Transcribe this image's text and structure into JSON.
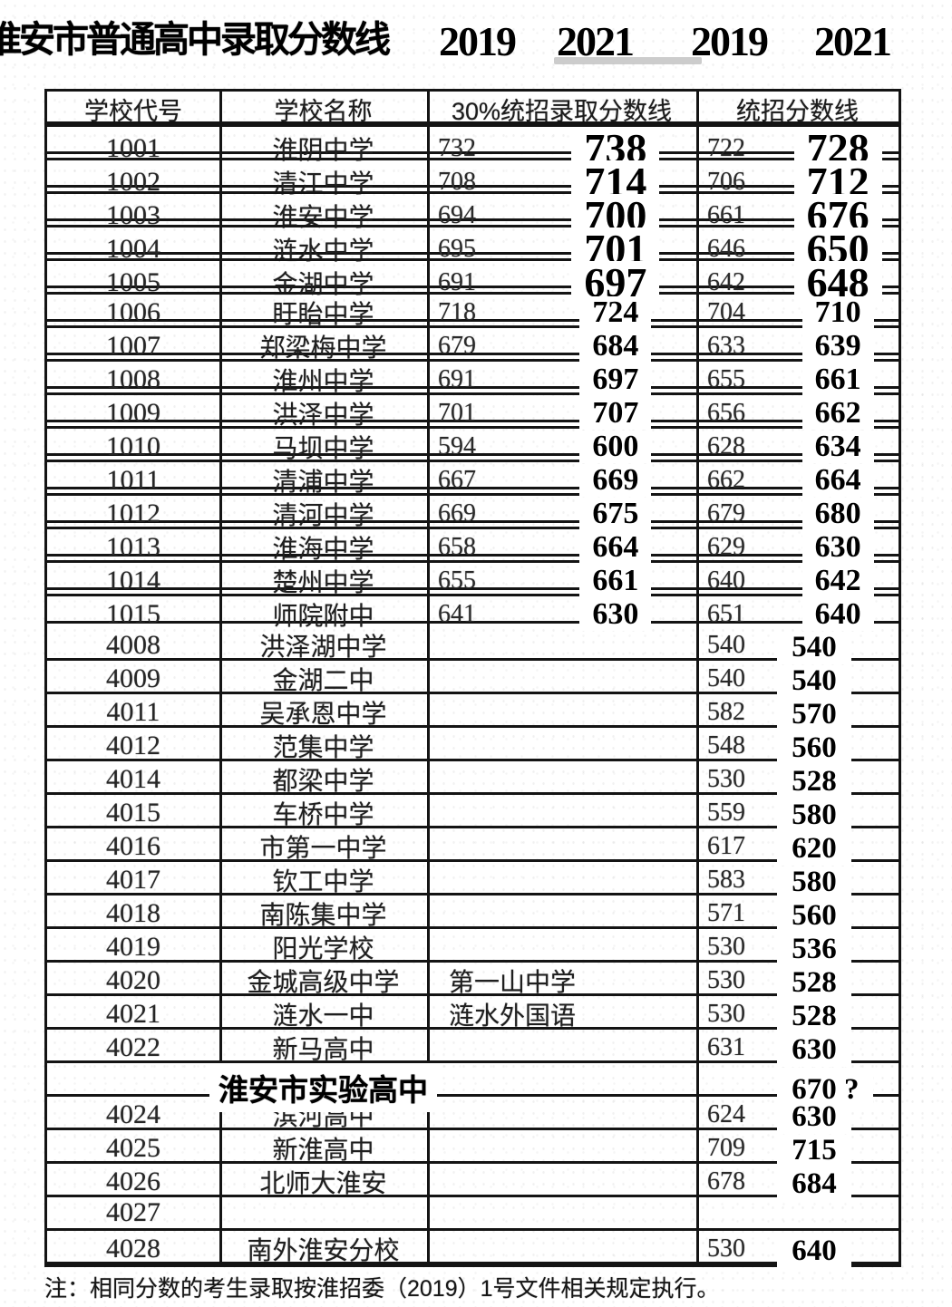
{
  "title": {
    "text": "淮安市普通高中录取分数线",
    "years": [
      "2019",
      "2021",
      "2019",
      "2021"
    ]
  },
  "table": {
    "headers": [
      "学校代号",
      "学校名称",
      "30%统招录取分数线",
      "统招分数线"
    ],
    "main_schools": [
      {
        "code": "1001",
        "name": "淮阴中学",
        "s19_30": "732",
        "s21_30": "738",
        "s19": "722",
        "s21": "728"
      },
      {
        "code": "1002",
        "name": "清江中学",
        "s19_30": "708",
        "s21_30": "714",
        "s19": "706",
        "s21": "712"
      },
      {
        "code": "1003",
        "name": "淮安中学",
        "s19_30": "694",
        "s21_30": "700",
        "s19": "661",
        "s21": "676"
      },
      {
        "code": "1004",
        "name": "涟水中学",
        "s19_30": "695",
        "s21_30": "701",
        "s19": "646",
        "s21": "650"
      },
      {
        "code": "1005",
        "name": "金湖中学",
        "s19_30": "691",
        "s21_30": "697",
        "s19": "642",
        "s21": "648"
      },
      {
        "code": "1006",
        "name": "盱眙中学",
        "s19_30": "718",
        "s21_30": "724",
        "s19": "704",
        "s21": "710"
      },
      {
        "code": "1007",
        "name": "郑梁梅中学",
        "s19_30": "679",
        "s21_30": "684",
        "s19": "633",
        "s21": "639"
      },
      {
        "code": "1008",
        "name": "淮州中学",
        "s19_30": "691",
        "s21_30": "697",
        "s19": "655",
        "s21": "661"
      },
      {
        "code": "1009",
        "name": "洪泽中学",
        "s19_30": "701",
        "s21_30": "707",
        "s19": "656",
        "s21": "662"
      },
      {
        "code": "1010",
        "name": "马坝中学",
        "s19_30": "594",
        "s21_30": "600",
        "s19": "628",
        "s21": "634"
      },
      {
        "code": "1011",
        "name": "清浦中学",
        "s19_30": "667",
        "s21_30": "669",
        "s19": "662",
        "s21": "664"
      },
      {
        "code": "1012",
        "name": "清河中学",
        "s19_30": "669",
        "s21_30": "675",
        "s19": "679",
        "s21": "680"
      },
      {
        "code": "1013",
        "name": "淮海中学",
        "s19_30": "658",
        "s21_30": "664",
        "s19": "629",
        "s21": "630"
      },
      {
        "code": "1014",
        "name": "楚州中学",
        "s19_30": "655",
        "s21_30": "661",
        "s19": "640",
        "s21": "642"
      },
      {
        "code": "1015",
        "name": "师院附中",
        "s19_30": "641",
        "s21_30": "630",
        "s19": "651",
        "s21": "640"
      }
    ],
    "other_schools": [
      {
        "code": "4008",
        "name": "洪泽湖中学",
        "note30": "",
        "s19": "540",
        "s21": "540"
      },
      {
        "code": "4009",
        "name": "金湖二中",
        "note30": "",
        "s19": "540",
        "s21": "540"
      },
      {
        "code": "4011",
        "name": "吴承恩中学",
        "note30": "",
        "s19": "582",
        "s21": "570"
      },
      {
        "code": "4012",
        "name": "范集中学",
        "note30": "",
        "s19": "548",
        "s21": "560"
      },
      {
        "code": "4014",
        "name": "都梁中学",
        "note30": "",
        "s19": "530",
        "s21": "528"
      },
      {
        "code": "4015",
        "name": "车桥中学",
        "note30": "",
        "s19": "559",
        "s21": "580"
      },
      {
        "code": "4016",
        "name": "市第一中学",
        "note30": "",
        "s19": "617",
        "s21": "620"
      },
      {
        "code": "4017",
        "name": "钦工中学",
        "note30": "",
        "s19": "583",
        "s21": "580"
      },
      {
        "code": "4018",
        "name": "南陈集中学",
        "note30": "",
        "s19": "571",
        "s21": "560"
      },
      {
        "code": "4019",
        "name": "阳光学校",
        "note30": "",
        "s19": "530",
        "s21": "536"
      },
      {
        "code": "4020",
        "name": "金城高级中学",
        "note30": "第一山中学",
        "s19": "530",
        "s21": "528"
      },
      {
        "code": "4021",
        "name": "涟水一中",
        "note30": "涟水外国语",
        "s19": "530",
        "s21": "528"
      },
      {
        "code": "4022",
        "name": "新马高中",
        "note30": "",
        "s19": "631",
        "s21": "630"
      },
      {
        "code": "",
        "name": "淮安市实验高中",
        "note30": "",
        "s19": "",
        "s21": "670 ?",
        "bold_name": true
      },
      {
        "code": "4024",
        "name": "滨河高中",
        "note30": "",
        "s19": "624",
        "s21": "630"
      },
      {
        "code": "4025",
        "name": "新淮高中",
        "note30": "",
        "s19": "709",
        "s21": "715"
      },
      {
        "code": "4026",
        "name": "北师大淮安",
        "note30": "",
        "s19": "678",
        "s21": "684"
      },
      {
        "code": "4027",
        "name": "",
        "note30": "",
        "s19": "",
        "s21": ""
      },
      {
        "code": "4028",
        "name": "南外淮安分校",
        "note30": "",
        "s19": "530",
        "s21": "640"
      }
    ]
  },
  "footnote": "注：相同分数的考生录取按淮招委（2019）1号文件相关规定执行。"
}
